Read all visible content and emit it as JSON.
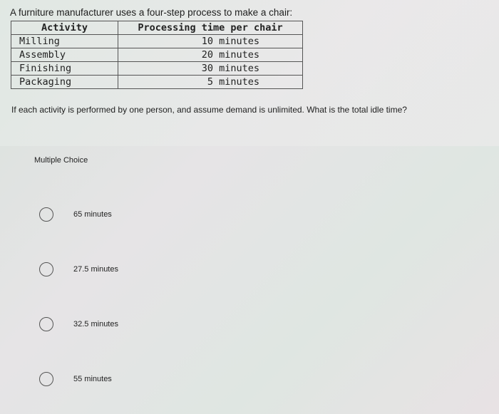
{
  "question_intro": "A furniture manufacturer uses a four-step process to make a chair:",
  "table": {
    "headers": [
      "Activity",
      "Processing time per chair"
    ],
    "rows": [
      [
        "Milling",
        "10 minutes"
      ],
      [
        "Assembly",
        "20 minutes"
      ],
      [
        "Finishing",
        "30 minutes"
      ],
      [
        "Packaging",
        "5 minutes"
      ]
    ]
  },
  "question": "If each activity is performed by one person, and assume demand is unlimited. What is the total idle time?",
  "section_label": "Multiple Choice",
  "options": [
    "65 minutes",
    "27.5 minutes",
    "32.5 minutes",
    "55 minutes"
  ]
}
